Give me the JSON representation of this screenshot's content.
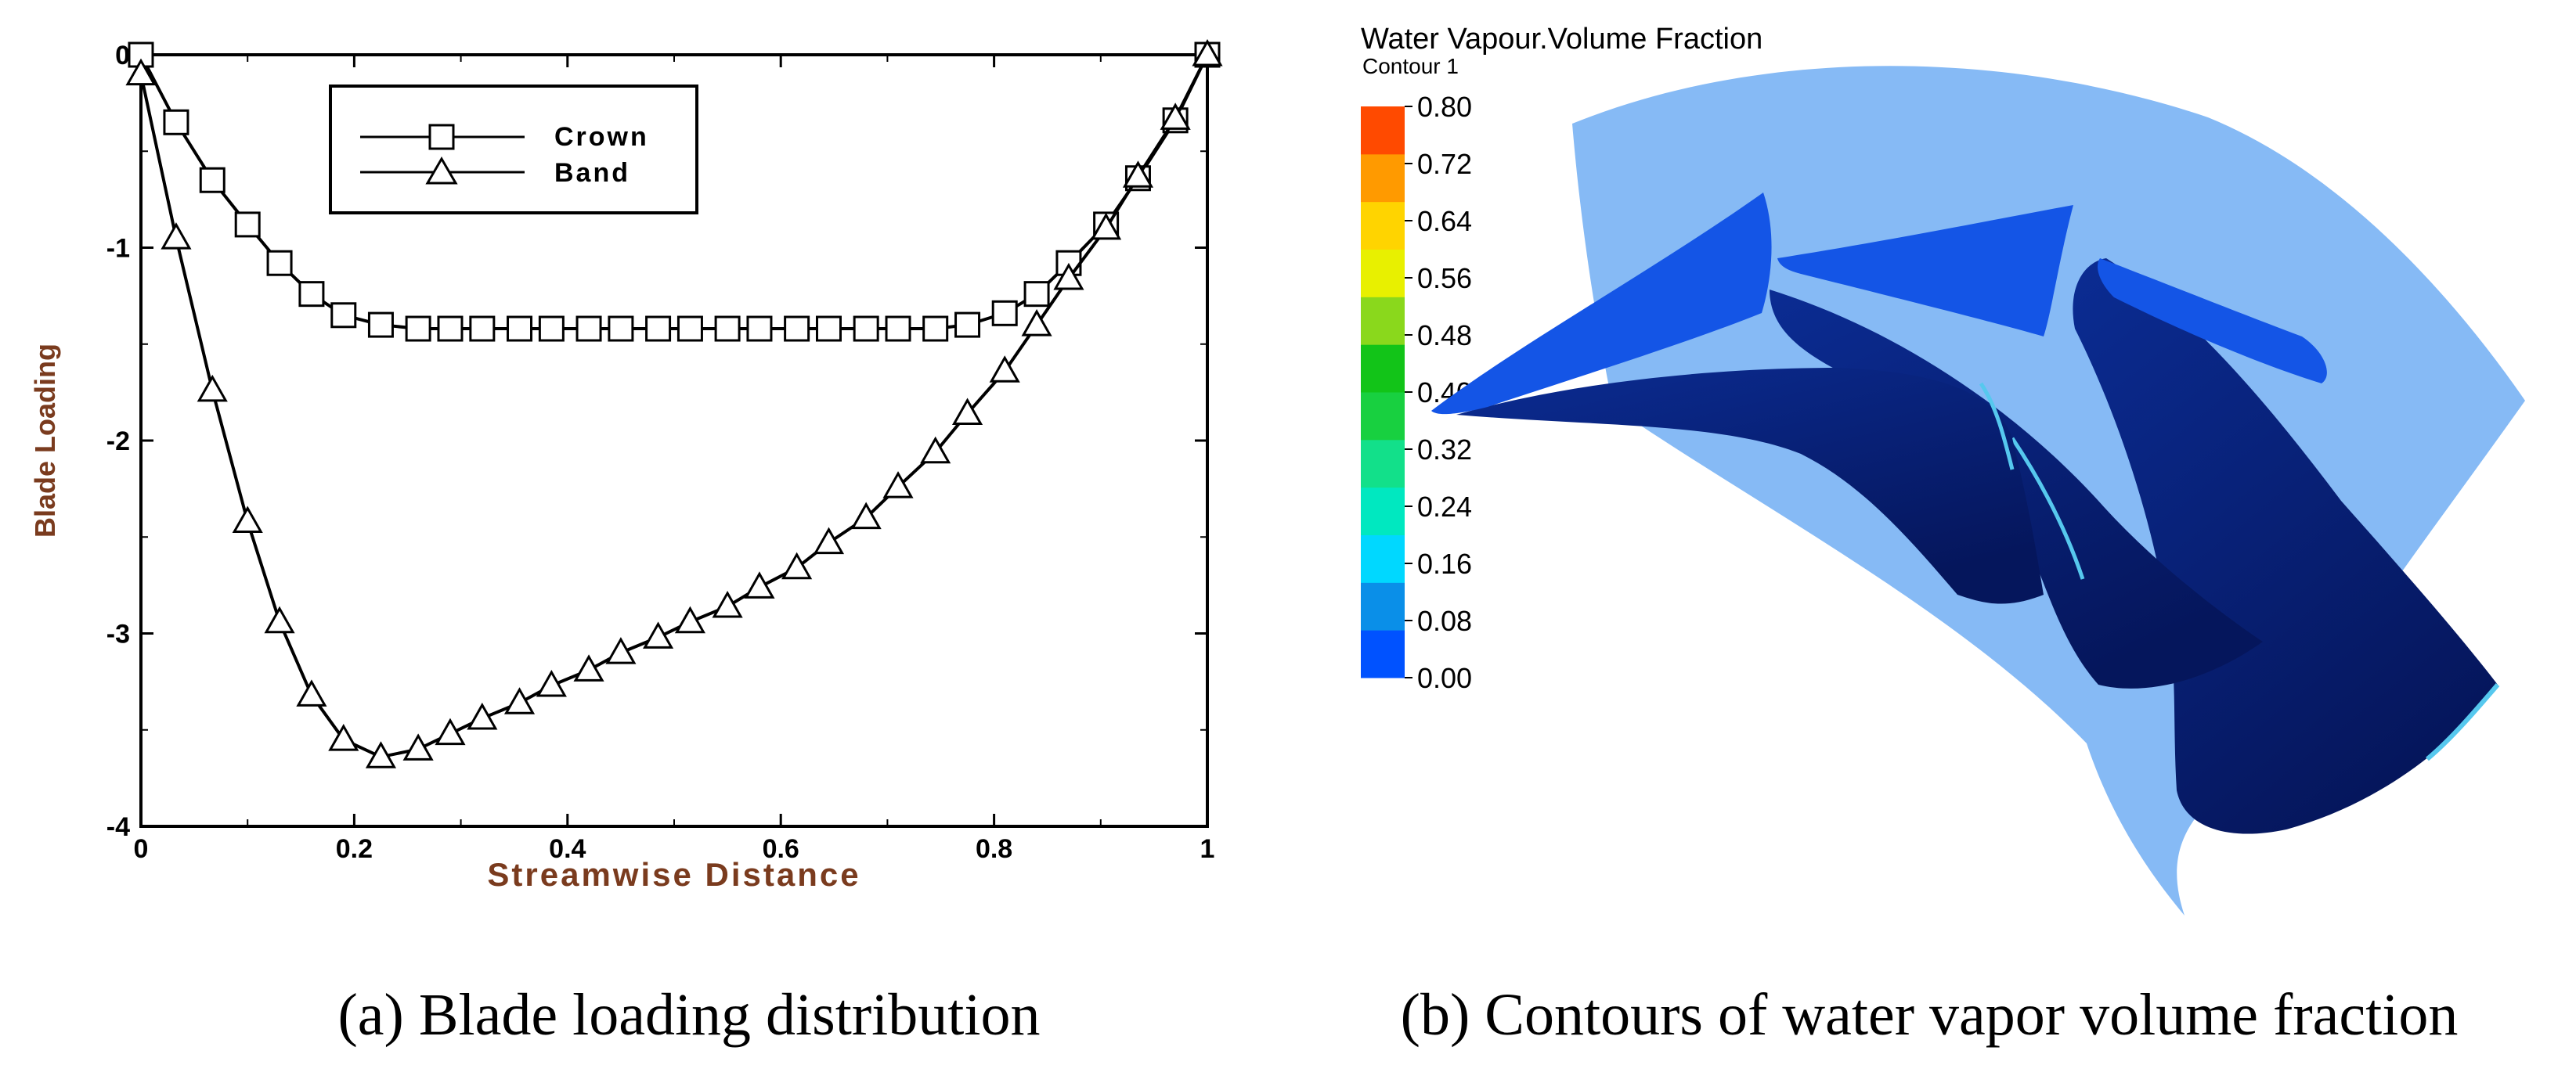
{
  "chart_data": [
    {
      "type": "line",
      "title": "",
      "xlabel": "Streamwise Distance",
      "ylabel": "Blade Loading",
      "xlim": [
        0,
        1
      ],
      "ylim": [
        -4,
        0
      ],
      "xticks": [
        "0",
        "0.2",
        "0.4",
        "0.6",
        "0.8",
        "1"
      ],
      "yticks": [
        "0",
        "-1",
        "-2",
        "-3",
        "-4"
      ],
      "grid": false,
      "legend_position": "top-left",
      "series": [
        {
          "name": "Crown",
          "marker": "square",
          "x": [
            0,
            0.033,
            0.067,
            0.1,
            0.13,
            0.16,
            0.19,
            0.225,
            0.26,
            0.29,
            0.32,
            0.355,
            0.385,
            0.42,
            0.45,
            0.485,
            0.515,
            0.55,
            0.58,
            0.615,
            0.645,
            0.68,
            0.71,
            0.745,
            0.775,
            0.81,
            0.84,
            0.87,
            0.905,
            0.935,
            0.97,
            1.0
          ],
          "values": [
            0,
            -0.35,
            -0.65,
            -0.88,
            -1.08,
            -1.24,
            -1.35,
            -1.4,
            -1.42,
            -1.42,
            -1.42,
            -1.42,
            -1.42,
            -1.42,
            -1.42,
            -1.42,
            -1.42,
            -1.42,
            -1.42,
            -1.42,
            -1.42,
            -1.42,
            -1.42,
            -1.42,
            -1.4,
            -1.34,
            -1.24,
            -1.08,
            -0.88,
            -0.64,
            -0.34,
            0
          ]
        },
        {
          "name": "Band",
          "marker": "triangle",
          "x": [
            0,
            0.033,
            0.067,
            0.1,
            0.13,
            0.16,
            0.19,
            0.225,
            0.26,
            0.29,
            0.32,
            0.355,
            0.385,
            0.42,
            0.45,
            0.485,
            0.515,
            0.55,
            0.58,
            0.615,
            0.645,
            0.68,
            0.71,
            0.745,
            0.775,
            0.81,
            0.84,
            0.87,
            0.905,
            0.935,
            0.97,
            1.0
          ],
          "values": [
            -0.1,
            -0.95,
            -1.74,
            -2.42,
            -2.94,
            -3.32,
            -3.55,
            -3.64,
            -3.6,
            -3.52,
            -3.44,
            -3.36,
            -3.27,
            -3.19,
            -3.1,
            -3.02,
            -2.94,
            -2.86,
            -2.76,
            -2.66,
            -2.53,
            -2.4,
            -2.24,
            -2.06,
            -1.86,
            -1.64,
            -1.4,
            -1.16,
            -0.9,
            -0.63,
            -0.33,
            0
          ]
        }
      ],
      "caption": "(a) Blade loading distribution"
    },
    {
      "type": "heatmap",
      "title": "Water Vapour.Volume Fraction",
      "subtitle": "Contour 1",
      "colorbar_ticks": [
        "0.80",
        "0.72",
        "0.64",
        "0.56",
        "0.48",
        "0.40",
        "0.32",
        "0.24",
        "0.16",
        "0.08",
        "0.00"
      ],
      "colorbar_range": [
        0,
        0.8
      ],
      "colorbar_colors": [
        "#0052ff",
        "#0a8fe8",
        "#00d8ff",
        "#00e8c0",
        "#12e08a",
        "#18d040",
        "#12c418",
        "#8ad81c",
        "#e8f000",
        "#ffd400",
        "#ff9a00",
        "#ff4a00"
      ],
      "colors": {
        "domain": "#86baf5",
        "blade_bright": "#1455e6",
        "blade_dark": "#081e6e",
        "blade_edge": "#56c8ee"
      },
      "caption": "(b) Contours of water vapor volume fraction"
    }
  ]
}
